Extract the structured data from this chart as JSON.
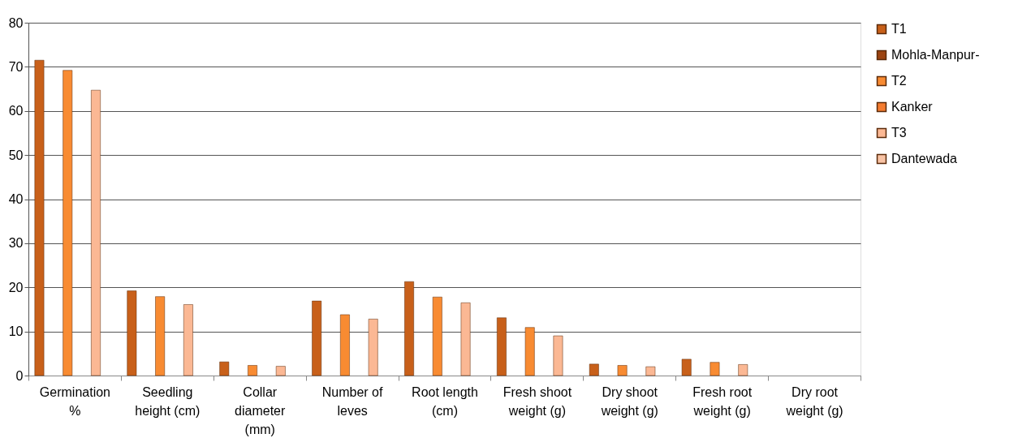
{
  "chart_data": {
    "type": "bar",
    "categories": [
      "Germination %",
      "Seedling height (cm)",
      "Collar diameter (mm)",
      "Number of leves",
      "Root length (cm)",
      "Fresh shoot weight (g)",
      "Dry shoot weight (g)",
      "Fresh root weight (g)",
      "Dry root weight (g)"
    ],
    "series": [
      {
        "name": "T1",
        "color": "#c8601a",
        "values": [
          71.5,
          19.2,
          3.1,
          16.9,
          21.3,
          13.1,
          2.6,
          3.7,
          null
        ]
      },
      {
        "name": "Mohla-Manpur-",
        "color": "#9c4412",
        "values": [
          null,
          null,
          null,
          null,
          null,
          null,
          null,
          null,
          null
        ]
      },
      {
        "name": "T2",
        "color": "#f88b32",
        "values": [
          69.2,
          17.9,
          2.3,
          13.8,
          17.8,
          10.9,
          2.3,
          3.0,
          null
        ]
      },
      {
        "name": "Kanker",
        "color": "#f47c30",
        "values": [
          null,
          null,
          null,
          null,
          null,
          null,
          null,
          null,
          null
        ]
      },
      {
        "name": "T3",
        "color": "#fbb894",
        "values": [
          64.7,
          16.1,
          2.1,
          12.8,
          16.5,
          9.0,
          2.0,
          2.5,
          null
        ]
      },
      {
        "name": "Dantewada",
        "color": "#f8c3a5",
        "values": [
          null,
          null,
          null,
          null,
          null,
          null,
          null,
          null,
          null
        ]
      }
    ],
    "ylim": [
      0,
      80
    ],
    "yticks": [
      0,
      10,
      20,
      30,
      40,
      50,
      60,
      70,
      80
    ],
    "grid": "y",
    "legend": "right"
  }
}
